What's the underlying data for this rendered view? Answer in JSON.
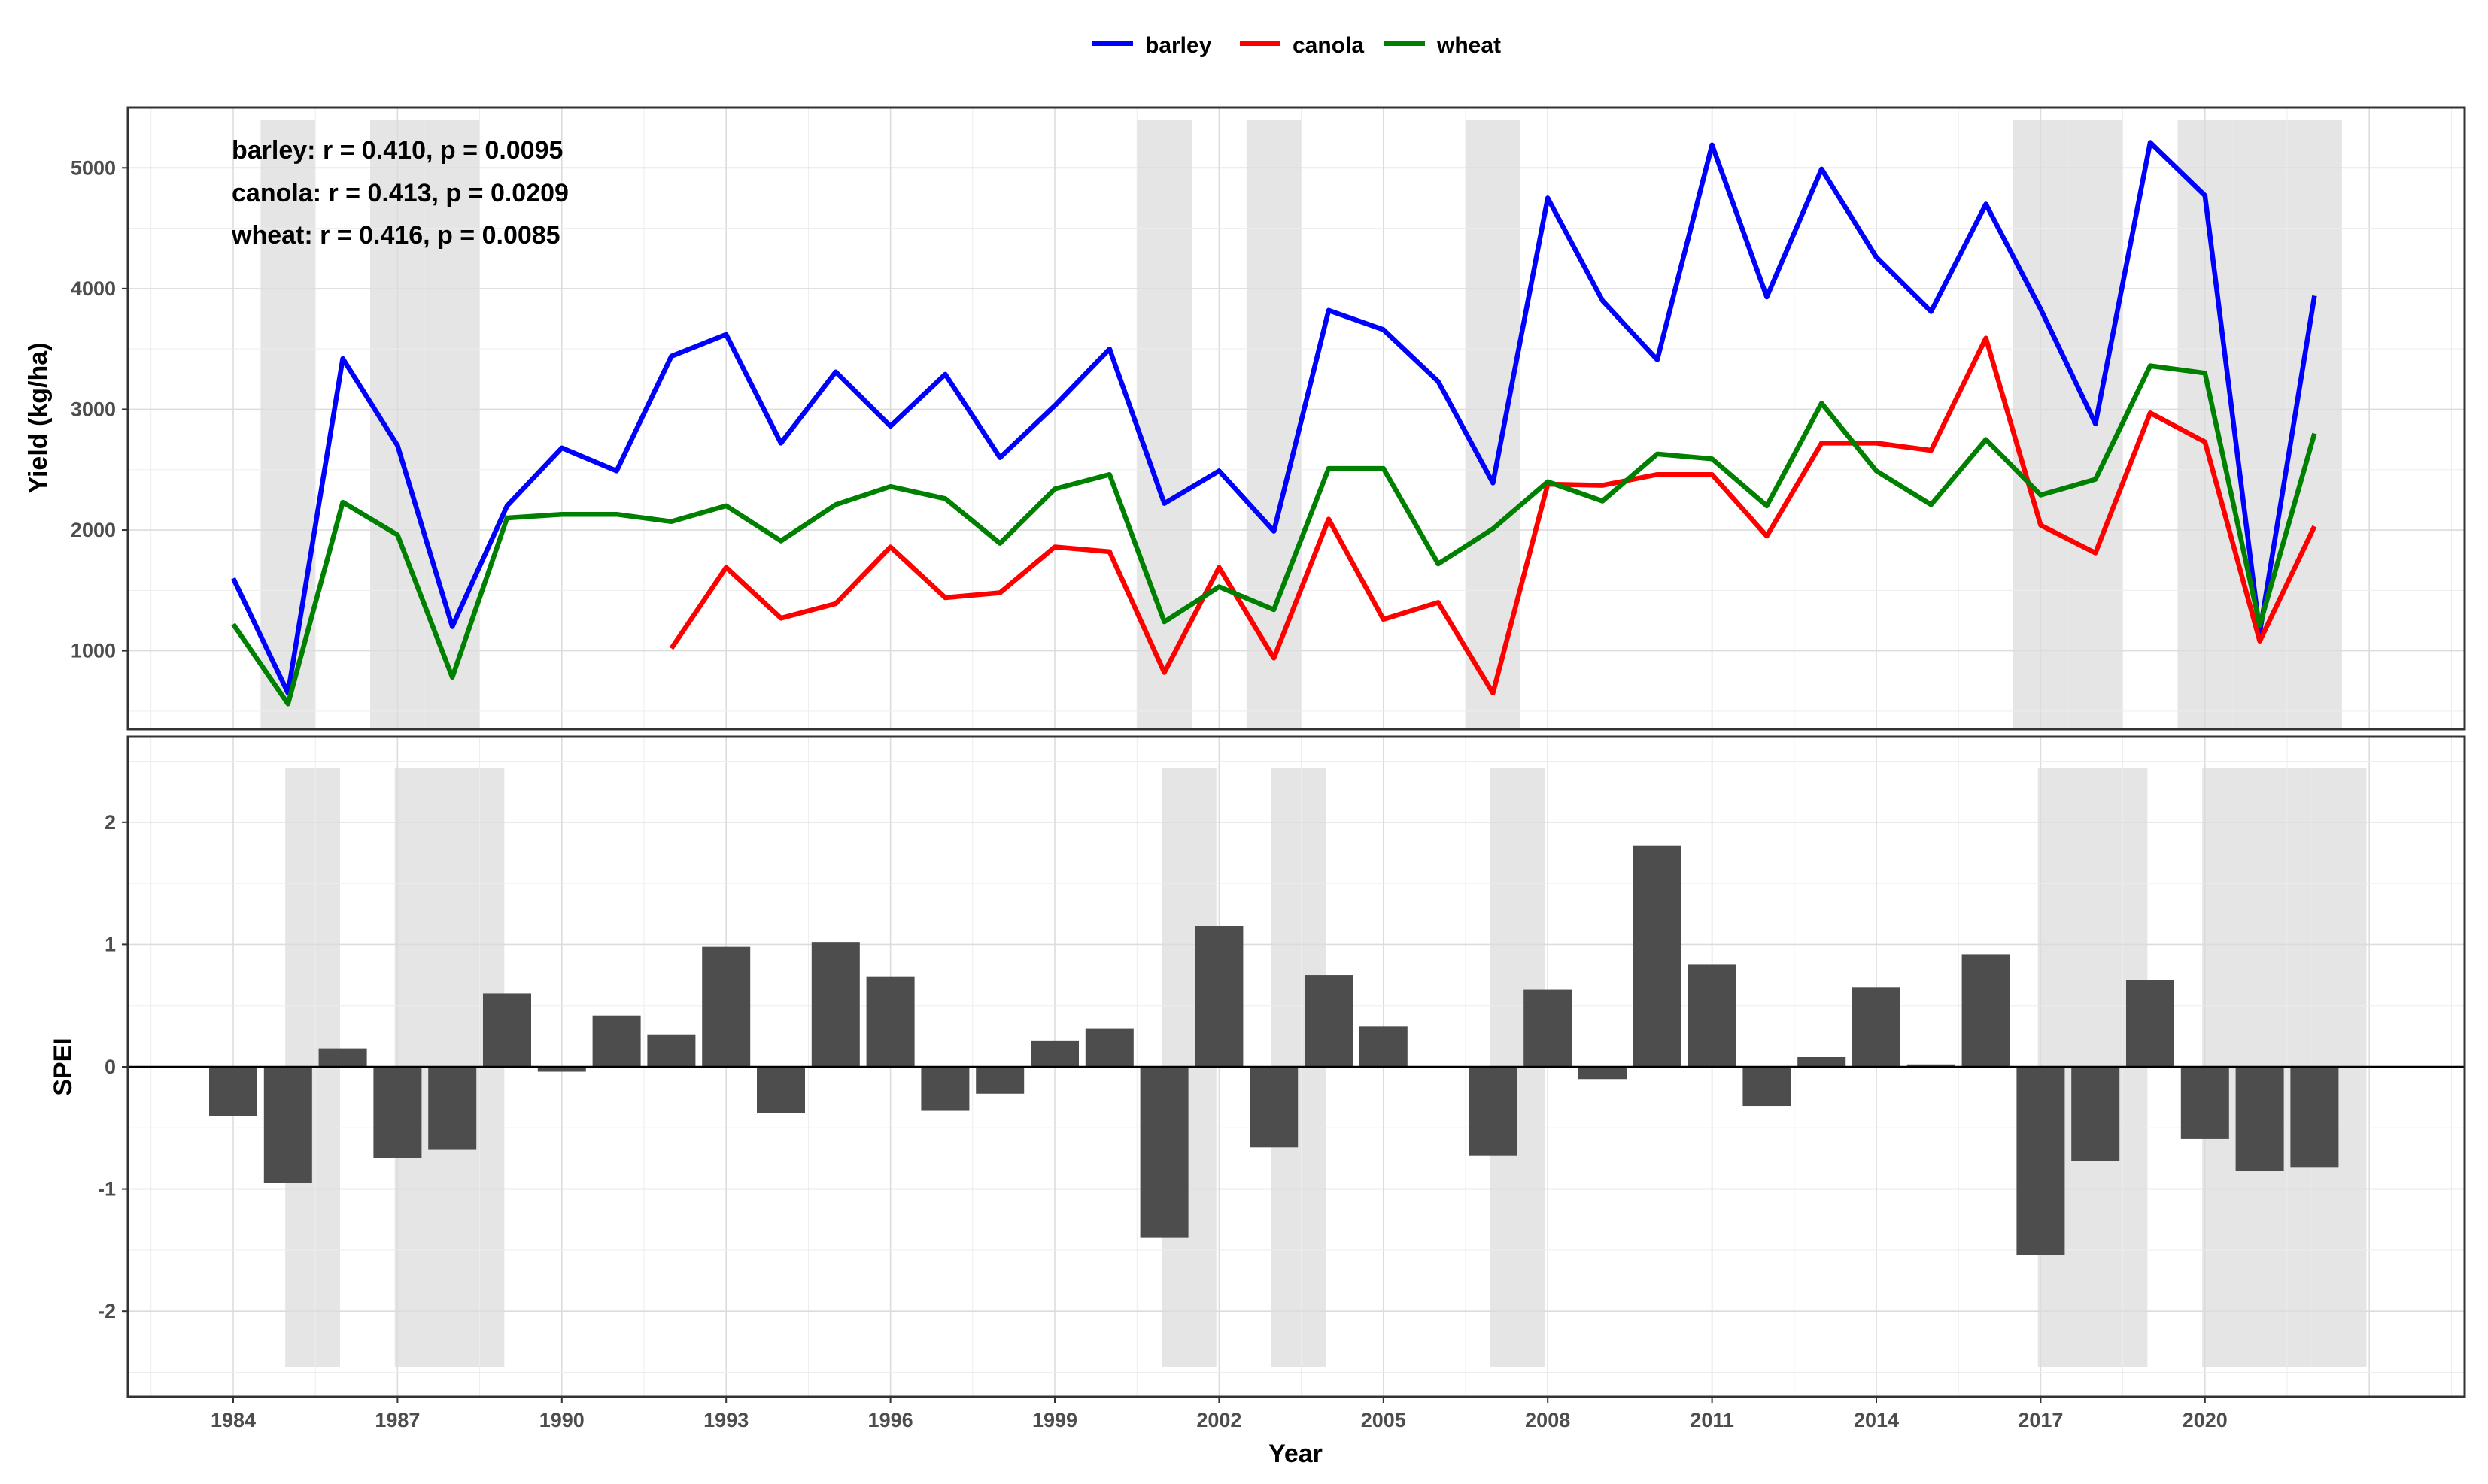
{
  "chart_data": [
    {
      "type": "line",
      "panel": "top",
      "title": "",
      "xlabel": "",
      "ylabel": "Yield (kg/ha)",
      "ylim": [
        350,
        5500
      ],
      "yticks": [
        1000,
        2000,
        3000,
        4000,
        5000
      ],
      "grid": true,
      "legend": "top",
      "drought_years": [
        1985,
        1987,
        1988,
        2001,
        2003,
        2007,
        2017,
        2018,
        2020,
        2021,
        2022
      ],
      "annotations": [
        "barley: r = 0.410, p = 0.0095",
        "canola: r = 0.413, p = 0.0209",
        "wheat: r = 0.416, p = 0.0085"
      ],
      "x": [
        1984,
        1985,
        1986,
        1987,
        1988,
        1989,
        1990,
        1991,
        1992,
        1993,
        1994,
        1995,
        1996,
        1997,
        1998,
        1999,
        2000,
        2001,
        2002,
        2003,
        2004,
        2005,
        2006,
        2007,
        2008,
        2009,
        2010,
        2011,
        2012,
        2013,
        2014,
        2015,
        2016,
        2017,
        2018,
        2019,
        2020,
        2021,
        2022
      ],
      "series": [
        {
          "name": "barley",
          "color": "#0000ff",
          "values": [
            1600,
            650,
            3420,
            2700,
            1200,
            2200,
            2680,
            2490,
            3440,
            3620,
            2720,
            3310,
            2860,
            3290,
            2600,
            3030,
            3500,
            2220,
            2490,
            1990,
            3820,
            3660,
            3230,
            2390,
            4750,
            3900,
            3410,
            5190,
            3930,
            4990,
            4260,
            3810,
            4700,
            3830,
            2880,
            5210,
            4770,
            1150,
            3940
          ]
        },
        {
          "name": "canola",
          "color": "#ff0000",
          "values": [
            null,
            null,
            null,
            null,
            null,
            null,
            null,
            null,
            1020,
            1690,
            1270,
            1390,
            1860,
            1440,
            1480,
            1860,
            1820,
            820,
            1690,
            940,
            2090,
            1260,
            1400,
            650,
            2380,
            2370,
            2460,
            2460,
            1950,
            2720,
            2720,
            2660,
            3590,
            2040,
            1810,
            2970,
            2730,
            1080,
            2030
          ]
        },
        {
          "name": "wheat",
          "color": "#008000",
          "values": [
            1220,
            560,
            2230,
            1960,
            780,
            2100,
            2130,
            2130,
            2070,
            2200,
            1910,
            2210,
            2360,
            2260,
            1890,
            2340,
            2460,
            1240,
            1530,
            1340,
            2510,
            2510,
            1720,
            2010,
            2400,
            2240,
            2630,
            2590,
            2200,
            3050,
            2490,
            2210,
            2750,
            2290,
            2420,
            3360,
            3300,
            1210,
            2800
          ]
        }
      ]
    },
    {
      "type": "bar",
      "panel": "bottom",
      "title": "",
      "xlabel": "Year",
      "ylabel": "SPEI",
      "ylim": [
        -2.7,
        2.7
      ],
      "yticks": [
        -2,
        -1,
        0,
        1,
        2
      ],
      "xticks": [
        1984,
        1987,
        1990,
        1993,
        1996,
        1999,
        2002,
        2005,
        2008,
        2011,
        2014,
        2017,
        2020
      ],
      "grid": true,
      "bar_color": "#4d4d4d",
      "x": [
        1984,
        1985,
        1986,
        1987,
        1988,
        1989,
        1990,
        1991,
        1992,
        1993,
        1994,
        1995,
        1996,
        1997,
        1998,
        1999,
        2000,
        2001,
        2002,
        2003,
        2004,
        2005,
        2006,
        2007,
        2008,
        2009,
        2010,
        2011,
        2012,
        2013,
        2014,
        2015,
        2016,
        2017,
        2018,
        2019,
        2020,
        2021,
        2022
      ],
      "values": [
        -0.4,
        -0.95,
        0.15,
        -0.75,
        -0.68,
        0.6,
        -0.04,
        0.42,
        0.26,
        0.98,
        -0.38,
        1.02,
        0.74,
        -0.36,
        -0.22,
        0.21,
        0.31,
        -1.4,
        1.15,
        -0.66,
        0.75,
        0.33,
        0.0,
        -0.73,
        0.63,
        -0.1,
        1.81,
        0.84,
        -0.32,
        0.08,
        0.65,
        0.02,
        0.92,
        -1.54,
        -0.77,
        0.71,
        -0.59,
        -0.85,
        -0.82
      ]
    }
  ]
}
